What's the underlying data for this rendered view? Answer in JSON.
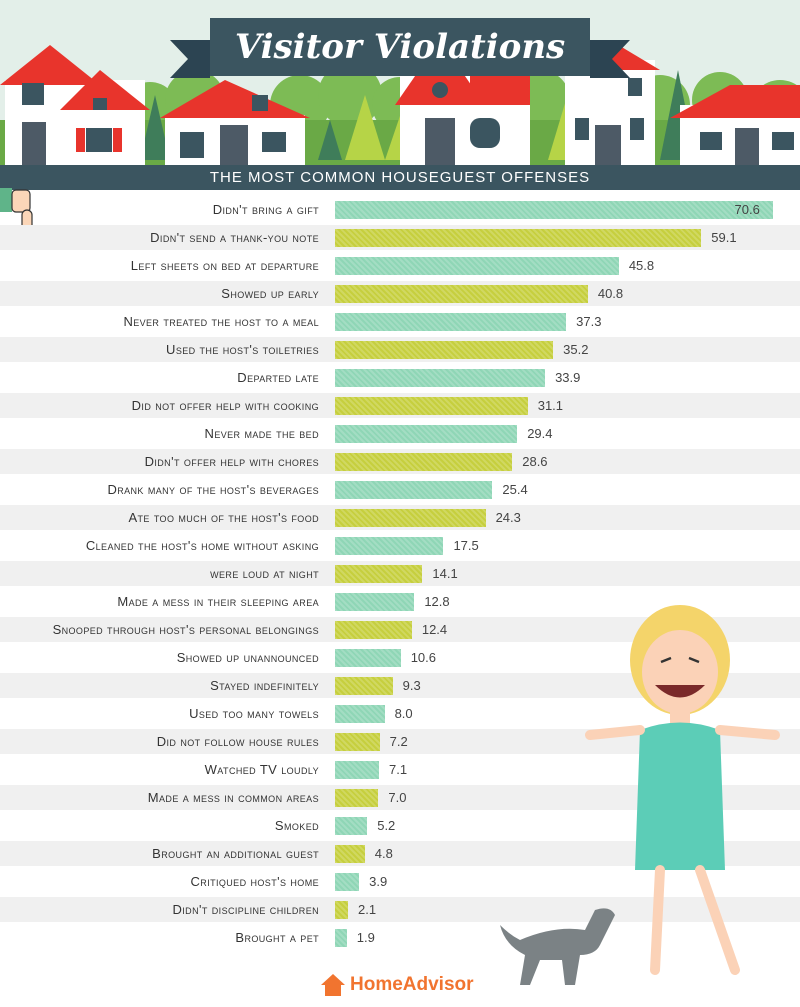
{
  "title": "Visitor Violations",
  "subtitle": "THE MOST COMMON HOUSEGUEST OFFENSES",
  "brand": "HomeAdvisor",
  "colors": {
    "bar_teal": "#8fd6b6",
    "bar_olive": "#c6cf3e",
    "row_stripe": "#f0f0f0",
    "header_sky": "#e3efe9",
    "house_roof": "#e8342c",
    "subtitle_band": "#3b5560",
    "brand_orange": "#f1742f"
  },
  "chart_data": {
    "type": "bar",
    "orientation": "horizontal",
    "categories": [
      "Didn't bring a gift",
      "Didn't send a thank-you note",
      "Left sheets on bed at departure",
      "Showed up early",
      "Never treated the host to a meal",
      "Used the host's toiletries",
      "Departed late",
      "Did not offer help with cooking",
      "Never made the bed",
      "Didn't offer help with chores",
      "Drank many of the host's beverages",
      "Ate too much of the host's food",
      "Cleaned the host's home without asking",
      "were loud at night",
      "Made a mess in their sleeping area",
      "Snooped through host's personal belongings",
      "Showed up unannounced",
      "Stayed indefinitely",
      "Used too many towels",
      "Did not follow house rules",
      "Watched TV loudly",
      "Made a mess in common areas",
      "Smoked",
      "Brought an additional guest",
      "Critiqued host's home",
      "Didn't discipline children",
      "Brought a pet"
    ],
    "values": [
      70.6,
      59.1,
      45.8,
      40.8,
      37.3,
      35.2,
      33.9,
      31.1,
      29.4,
      28.6,
      25.4,
      24.3,
      17.5,
      14.1,
      12.8,
      12.4,
      10.6,
      9.3,
      8.0,
      7.2,
      7.1,
      7.0,
      5.2,
      4.8,
      3.9,
      2.1,
      1.9
    ],
    "value_labels": [
      "70.6",
      "59.1",
      "45.8",
      "40.8",
      "37.3",
      "35.2",
      "33.9",
      "31.1",
      "29.4",
      "28.6",
      "25.4",
      "24.3",
      "17.5",
      "14.1",
      "12.8",
      "12.4",
      "10.6",
      "9.3",
      "8.0",
      "7.2",
      "7.1",
      "7.0",
      "5.2",
      "4.8",
      "3.9",
      "2.1",
      "1.9"
    ],
    "xlim": [
      0,
      71
    ],
    "bar_color_pattern": [
      "teal",
      "olive"
    ],
    "grid": false,
    "legend": "none"
  }
}
